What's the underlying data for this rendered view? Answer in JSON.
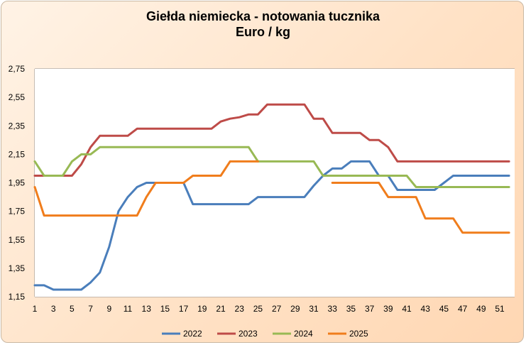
{
  "chart_data": {
    "type": "line",
    "title": "Giełda niemiecka  - notowania tucznika",
    "subtitle": "Euro / kg",
    "xlabel": "",
    "ylabel": "",
    "ylim": [
      1.15,
      2.75
    ],
    "yticks": [
      "2,75",
      "2,55",
      "2,35",
      "2,15",
      "1,95",
      "1,75",
      "1,55",
      "1,35",
      "1,15"
    ],
    "xticks": [
      "1",
      "3",
      "5",
      "7",
      "9",
      "11",
      "13",
      "15",
      "17",
      "19",
      "21",
      "23",
      "25",
      "27",
      "29",
      "31",
      "33",
      "35",
      "37",
      "39",
      "41",
      "43",
      "45",
      "47",
      "49",
      "51"
    ],
    "grid": true,
    "legend_position": "bottom",
    "x": [
      1,
      2,
      3,
      4,
      5,
      6,
      7,
      8,
      9,
      10,
      11,
      12,
      13,
      14,
      15,
      16,
      17,
      18,
      19,
      20,
      21,
      22,
      23,
      24,
      25,
      26,
      27,
      28,
      29,
      30,
      31,
      32,
      33,
      34,
      35,
      36,
      37,
      38,
      39,
      40,
      41,
      42,
      43,
      44,
      45,
      46,
      47,
      48,
      49,
      50,
      51,
      52
    ],
    "series": [
      {
        "name": "2022",
        "color": "#4a7ebb",
        "values": [
          1.23,
          1.23,
          1.2,
          1.2,
          1.2,
          1.2,
          1.25,
          1.32,
          1.5,
          1.75,
          1.85,
          1.92,
          1.95,
          1.95,
          1.95,
          1.95,
          1.95,
          1.8,
          1.8,
          1.8,
          1.8,
          1.8,
          1.8,
          1.8,
          1.85,
          1.85,
          1.85,
          1.85,
          1.85,
          1.85,
          1.93,
          2.0,
          2.05,
          2.05,
          2.1,
          2.1,
          2.1,
          2.0,
          2.0,
          1.9,
          1.9,
          1.9,
          1.9,
          1.9,
          1.95,
          2.0,
          2.0,
          2.0,
          2.0,
          2.0,
          2.0,
          2.0
        ]
      },
      {
        "name": "2023",
        "color": "#be4b48",
        "values": [
          2.0,
          2.0,
          2.0,
          2.0,
          2.0,
          2.08,
          2.2,
          2.28,
          2.28,
          2.28,
          2.28,
          2.33,
          2.33,
          2.33,
          2.33,
          2.33,
          2.33,
          2.33,
          2.33,
          2.33,
          2.38,
          2.4,
          2.41,
          2.43,
          2.43,
          2.5,
          2.5,
          2.5,
          2.5,
          2.5,
          2.4,
          2.4,
          2.3,
          2.3,
          2.3,
          2.3,
          2.25,
          2.25,
          2.2,
          2.1,
          2.1,
          2.1,
          2.1,
          2.1,
          2.1,
          2.1,
          2.1,
          2.1,
          2.1,
          2.1,
          2.1,
          2.1
        ]
      },
      {
        "name": "2024",
        "color": "#98b954",
        "values": [
          2.1,
          2.0,
          2.0,
          2.0,
          2.1,
          2.15,
          2.15,
          2.2,
          2.2,
          2.2,
          2.2,
          2.2,
          2.2,
          2.2,
          2.2,
          2.2,
          2.2,
          2.2,
          2.2,
          2.2,
          2.2,
          2.2,
          2.2,
          2.2,
          2.1,
          2.1,
          2.1,
          2.1,
          2.1,
          2.1,
          2.1,
          2.0,
          2.0,
          2.0,
          2.0,
          2.0,
          2.0,
          2.0,
          2.0,
          2.0,
          2.0,
          1.92,
          1.92,
          1.92,
          1.92,
          1.92,
          1.92,
          1.92,
          1.92,
          1.92,
          1.92,
          1.92
        ]
      },
      {
        "name": "2025",
        "color": "#f07d1c",
        "values": [
          1.92,
          1.72,
          1.72,
          1.72,
          1.72,
          1.72,
          1.72,
          1.72,
          1.72,
          1.72,
          1.72,
          1.72,
          1.85,
          1.95,
          1.95,
          1.95,
          1.95,
          2.0,
          2.0,
          2.0,
          2.0,
          2.1,
          2.1,
          2.1,
          2.1,
          null,
          null,
          null,
          null,
          null,
          null,
          null,
          1.95,
          1.95,
          1.95,
          1.95,
          1.95,
          1.95,
          1.85,
          1.85,
          1.85,
          1.85,
          1.7,
          1.7,
          1.7,
          1.7,
          1.6,
          1.6,
          1.6,
          1.6,
          1.6,
          1.6
        ]
      }
    ]
  }
}
